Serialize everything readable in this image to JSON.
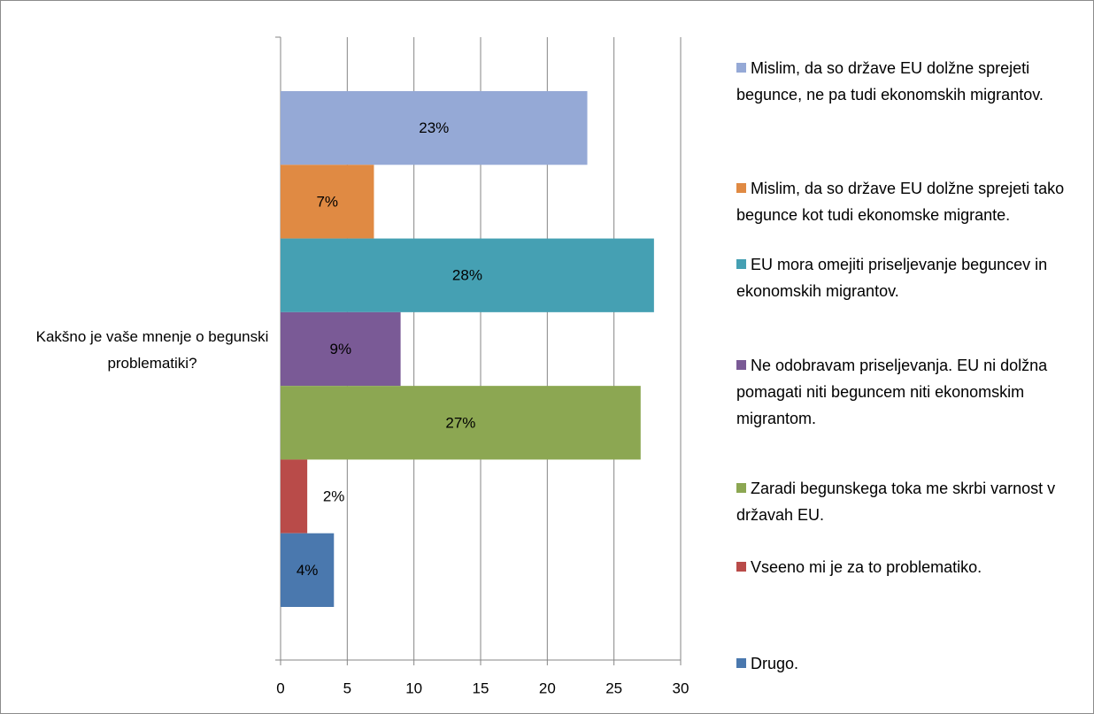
{
  "chart_data": {
    "type": "bar",
    "orientation": "horizontal",
    "categories": [
      "Kakšno je vaše mnenje o begunski problematiki?"
    ],
    "series": [
      {
        "name": "Mislim, da so države EU dolžne sprejeti begunce, ne pa tudi ekonomskih migrantov.",
        "color": "#95a9d6",
        "values": [
          23
        ],
        "value_labels": [
          "23%"
        ]
      },
      {
        "name": "Mislim, da so države EU dolžne sprejeti tako begunce kot tudi ekonomske migrante.",
        "color": "#e08a43",
        "values": [
          7
        ],
        "value_labels": [
          "7%"
        ]
      },
      {
        "name": "EU mora omejiti priseljevanje beguncev in ekonomskih migrantov.",
        "color": "#45a0b3",
        "values": [
          28
        ],
        "value_labels": [
          "28%"
        ]
      },
      {
        "name": "Ne odobravam priseljevanja. EU ni dolžna pomagati niti beguncem niti ekonomskim migrantom.",
        "color": "#7a5a96",
        "values": [
          9
        ],
        "value_labels": [
          "9%"
        ]
      },
      {
        "name": "Zaradi begunskega toka me skrbi varnost v državah EU.",
        "color": "#8ca752",
        "values": [
          27
        ],
        "value_labels": [
          "27%"
        ]
      },
      {
        "name": "Vseeno mi je za to problematiko.",
        "color": "#b94b49",
        "values": [
          2
        ],
        "value_labels": [
          "2%"
        ]
      },
      {
        "name": "Drugo.",
        "color": "#4a78ae",
        "values": [
          4
        ],
        "value_labels": [
          "4%"
        ]
      }
    ],
    "xlim": [
      0,
      30
    ],
    "xticks": [
      0,
      5,
      10,
      15,
      20,
      25,
      30
    ],
    "grid": true,
    "legend": "right"
  }
}
